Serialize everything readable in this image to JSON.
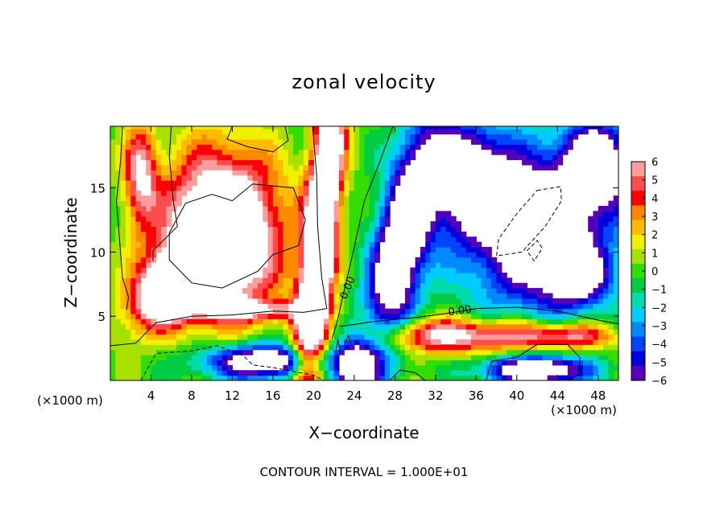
{
  "chart_data": {
    "type": "heatmap",
    "title": "zonal velocity",
    "xlabel": "X−coordinate",
    "ylabel": "Z−coordinate",
    "x_unit_left": "(×1000 m)",
    "x_unit_right": "(×1000 m)",
    "footer": "CONTOUR INTERVAL = 1.000E+01",
    "xlim": [
      0,
      50
    ],
    "ylim": [
      0,
      19.8
    ],
    "x_ticks": [
      4,
      8,
      12,
      16,
      20,
      24,
      28,
      32,
      36,
      40,
      44,
      48
    ],
    "y_ticks": [
      5,
      10,
      15
    ],
    "colorbar": {
      "ticks": [
        "6",
        "5",
        "4",
        "3",
        "2",
        "1",
        "0",
        "−1",
        "−2",
        "−3",
        "−4",
        "−5",
        "−6"
      ],
      "range": [
        -6,
        6
      ],
      "colors": [
        "#ff9d9d",
        "#ff4c4c",
        "#ff0000",
        "#ff8800",
        "#ffbb00",
        "#f0f000",
        "#a8e000",
        "#33dd00",
        "#00cc44",
        "#00ddaa",
        "#00ccff",
        "#0088ff",
        "#0044ff",
        "#0000dd",
        "#5500bb"
      ]
    },
    "contour_labels": [
      {
        "text": "0.00",
        "x": 23.4,
        "y": 7.2,
        "angle": -68
      },
      {
        "text": "0.00",
        "x": 34.4,
        "y": 5.4,
        "angle": -8
      }
    ]
  }
}
